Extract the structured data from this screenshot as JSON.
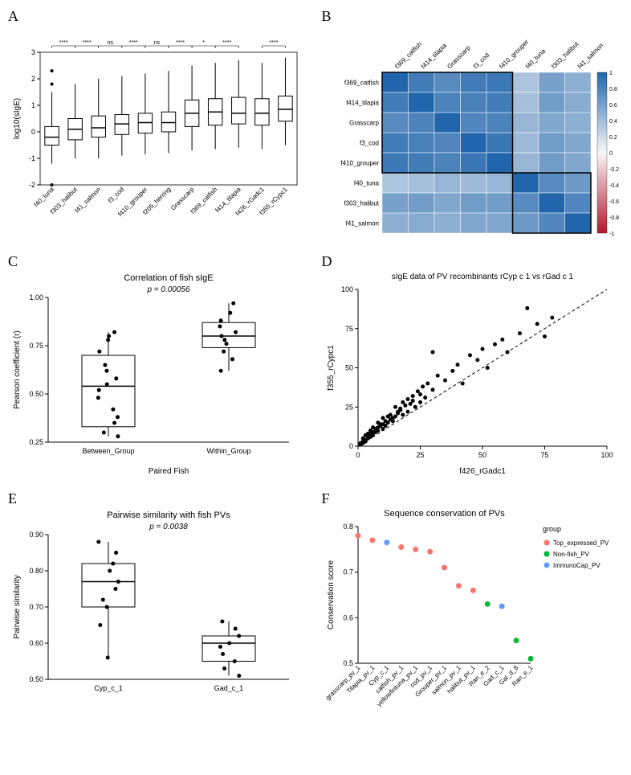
{
  "panelA": {
    "label": "A",
    "type": "boxplot",
    "ylabel": "log10(sIgE)",
    "ylim": [
      -2,
      3
    ],
    "yticks": [
      -2,
      -1,
      0,
      1,
      2,
      3
    ],
    "categories": [
      "f40_tuna",
      "f303_halibut",
      "f41_salmon",
      "f3_cod",
      "f410_grouper",
      "f205_herring",
      "Grasscarp",
      "f369_catfish",
      "f414_tilapia",
      "f426_rGadc1",
      "f355_rCypc1"
    ],
    "boxes": [
      {
        "q1": -0.5,
        "med": -0.2,
        "q3": 0.2,
        "low": -1.2,
        "high": 1.5,
        "outliers": [
          2.3,
          1.8,
          -2.0
        ]
      },
      {
        "q1": -0.3,
        "med": 0.1,
        "q3": 0.5,
        "low": -1.0,
        "high": 1.8,
        "outliers": []
      },
      {
        "q1": -0.2,
        "med": 0.15,
        "q3": 0.6,
        "low": -1.0,
        "high": 2.0,
        "outliers": []
      },
      {
        "q1": -0.1,
        "med": 0.3,
        "q3": 0.65,
        "low": -0.9,
        "high": 2.1,
        "outliers": []
      },
      {
        "q1": -0.05,
        "med": 0.35,
        "q3": 0.7,
        "low": -0.85,
        "high": 2.2,
        "outliers": []
      },
      {
        "q1": 0.0,
        "med": 0.35,
        "q3": 0.75,
        "low": -0.8,
        "high": 2.3,
        "outliers": []
      },
      {
        "q1": 0.2,
        "med": 0.7,
        "q3": 1.2,
        "low": -0.7,
        "high": 2.5,
        "outliers": []
      },
      {
        "q1": 0.25,
        "med": 0.75,
        "q3": 1.25,
        "low": -0.65,
        "high": 2.6,
        "outliers": []
      },
      {
        "q1": 0.3,
        "med": 0.7,
        "q3": 1.3,
        "low": -0.6,
        "high": 2.7,
        "outliers": []
      },
      {
        "q1": 0.25,
        "med": 0.7,
        "q3": 1.25,
        "low": -0.65,
        "high": 2.6,
        "outliers": []
      },
      {
        "q1": 0.4,
        "med": 0.85,
        "q3": 1.35,
        "low": -0.5,
        "high": 2.8,
        "outliers": []
      }
    ],
    "sig_annotations": [
      {
        "from": 0,
        "to": 1,
        "label": "****"
      },
      {
        "from": 1,
        "to": 2,
        "label": "****"
      },
      {
        "from": 2,
        "to": 3,
        "label": "ns"
      },
      {
        "from": 3,
        "to": 4,
        "label": "****"
      },
      {
        "from": 4,
        "to": 5,
        "label": "ns"
      },
      {
        "from": 5,
        "to": 6,
        "label": "****"
      },
      {
        "from": 6,
        "to": 7,
        "label": "*"
      },
      {
        "from": 7,
        "to": 8,
        "label": "****"
      },
      {
        "from": 9,
        "to": 10,
        "label": "****"
      }
    ],
    "box_fill": "#ffffff",
    "box_stroke": "#000000",
    "grid_color": "#ffffff",
    "background": "#ffffff"
  },
  "panelB": {
    "label": "B",
    "type": "heatmap",
    "row_labels": [
      "f369_catfish",
      "f414_tilapia",
      "Grasscarp",
      "f3_cod",
      "f410_grouper",
      "f40_tuna",
      "f303_halibut",
      "f41_salmon"
    ],
    "col_labels": [
      "f369_catfish",
      "f414_tilapia",
      "Grasscarp",
      "f3_cod",
      "f410_grouper",
      "f40_tuna",
      "f303_halibut",
      "f41_salmon"
    ],
    "values": [
      [
        1.0,
        0.85,
        0.75,
        0.85,
        0.87,
        0.35,
        0.6,
        0.5
      ],
      [
        0.85,
        1.0,
        0.8,
        0.82,
        0.85,
        0.38,
        0.62,
        0.52
      ],
      [
        0.75,
        0.8,
        1.0,
        0.78,
        0.8,
        0.45,
        0.55,
        0.5
      ],
      [
        0.85,
        0.82,
        0.78,
        1.0,
        0.88,
        0.42,
        0.63,
        0.55
      ],
      [
        0.87,
        0.85,
        0.8,
        0.88,
        1.0,
        0.45,
        0.62,
        0.55
      ],
      [
        0.35,
        0.38,
        0.45,
        0.42,
        0.45,
        1.0,
        0.75,
        0.65
      ],
      [
        0.6,
        0.62,
        0.55,
        0.63,
        0.62,
        0.75,
        1.0,
        0.78
      ],
      [
        0.5,
        0.52,
        0.5,
        0.55,
        0.55,
        0.65,
        0.78,
        1.0
      ]
    ],
    "colorbar_range": [
      -1,
      1
    ],
    "colorbar_ticks": [
      -1,
      -0.8,
      -0.6,
      -0.4,
      -0.2,
      0,
      0.2,
      0.4,
      0.6,
      0.8,
      1
    ],
    "color_low": "#b2182b",
    "color_mid": "#f7f7f7",
    "color_high": "#2166ac",
    "cluster_box_color": "#000000",
    "cluster1": [
      0,
      4
    ],
    "cluster2": [
      5,
      7
    ]
  },
  "panelC": {
    "label": "C",
    "type": "boxplot",
    "title": "Correlation of fish sIgE",
    "pval": "p = 0.00056",
    "ylabel": "Pearson coefficient (r)",
    "xlabel": "Paired Fish",
    "ylim": [
      0.25,
      1.0
    ],
    "yticks": [
      0.25,
      0.5,
      0.75,
      1.0
    ],
    "categories": [
      "Between_Group",
      "Within_Group"
    ],
    "boxes": [
      {
        "q1": 0.33,
        "med": 0.54,
        "q3": 0.7,
        "low": 0.28,
        "high": 0.82,
        "points": [
          0.82,
          0.8,
          0.78,
          0.72,
          0.65,
          0.62,
          0.58,
          0.55,
          0.52,
          0.48,
          0.42,
          0.38,
          0.35,
          0.3,
          0.28
        ]
      },
      {
        "q1": 0.74,
        "med": 0.8,
        "q3": 0.87,
        "low": 0.62,
        "high": 0.97,
        "points": [
          0.97,
          0.92,
          0.88,
          0.85,
          0.82,
          0.8,
          0.78,
          0.76,
          0.72,
          0.68,
          0.62
        ]
      }
    ],
    "box_fill": "#ffffff",
    "box_stroke": "#000000"
  },
  "panelD": {
    "label": "D",
    "type": "scatter",
    "title": "sIgE data of PV recombinants rCyp c 1 vs rGad c 1",
    "xlabel": "f426_rGadc1",
    "ylabel": "f355_rCypc1",
    "xlim": [
      0,
      100
    ],
    "ylim": [
      0,
      100
    ],
    "xticks": [
      0,
      25,
      50,
      75,
      100
    ],
    "yticks": [
      0,
      25,
      50,
      75,
      100
    ],
    "diagonal": true,
    "points": [
      [
        1,
        2
      ],
      [
        2,
        3
      ],
      [
        2,
        5
      ],
      [
        3,
        4
      ],
      [
        3,
        7
      ],
      [
        4,
        5
      ],
      [
        4,
        8
      ],
      [
        5,
        6
      ],
      [
        5,
        10
      ],
      [
        6,
        9
      ],
      [
        6,
        12
      ],
      [
        7,
        11
      ],
      [
        8,
        10
      ],
      [
        8,
        15
      ],
      [
        9,
        13
      ],
      [
        10,
        14
      ],
      [
        10,
        18
      ],
      [
        11,
        16
      ],
      [
        12,
        19
      ],
      [
        13,
        20
      ],
      [
        14,
        18
      ],
      [
        15,
        25
      ],
      [
        16,
        22
      ],
      [
        17,
        24
      ],
      [
        18,
        28
      ],
      [
        20,
        30
      ],
      [
        22,
        32
      ],
      [
        24,
        35
      ],
      [
        25,
        28
      ],
      [
        26,
        38
      ],
      [
        28,
        40
      ],
      [
        30,
        36
      ],
      [
        32,
        45
      ],
      [
        35,
        42
      ],
      [
        38,
        48
      ],
      [
        40,
        52
      ],
      [
        42,
        40
      ],
      [
        45,
        58
      ],
      [
        48,
        55
      ],
      [
        50,
        62
      ],
      [
        52,
        50
      ],
      [
        55,
        65
      ],
      [
        58,
        68
      ],
      [
        60,
        60
      ],
      [
        65,
        72
      ],
      [
        68,
        88
      ],
      [
        72,
        78
      ],
      [
        75,
        70
      ],
      [
        78,
        82
      ],
      [
        30,
        60
      ],
      [
        1,
        1
      ],
      [
        2,
        2
      ],
      [
        3,
        3
      ],
      [
        4,
        6
      ],
      [
        5,
        8
      ],
      [
        6,
        7
      ],
      [
        7,
        9
      ],
      [
        8,
        12
      ],
      [
        9,
        14
      ],
      [
        10,
        11
      ],
      [
        11,
        13
      ],
      [
        12,
        15
      ],
      [
        13,
        17
      ],
      [
        14,
        16
      ],
      [
        15,
        19
      ],
      [
        16,
        21
      ],
      [
        17,
        23
      ],
      [
        18,
        20
      ],
      [
        19,
        26
      ],
      [
        20,
        22
      ],
      [
        21,
        27
      ],
      [
        22,
        29
      ],
      [
        23,
        25
      ],
      [
        25,
        33
      ],
      [
        27,
        31
      ]
    ],
    "point_color": "#000000"
  },
  "panelE": {
    "label": "E",
    "type": "boxplot",
    "title": "Pairwise similarity with fish PVs",
    "pval": "p = 0.0038",
    "ylabel": "Pairwise similarity",
    "ylim": [
      0.5,
      0.9
    ],
    "yticks": [
      0.5,
      0.6,
      0.7,
      0.8,
      0.9
    ],
    "categories": [
      "Cyp_c_1",
      "Gad_c_1"
    ],
    "boxes": [
      {
        "q1": 0.7,
        "med": 0.77,
        "q3": 0.82,
        "low": 0.56,
        "high": 0.88,
        "points": [
          0.88,
          0.85,
          0.82,
          0.8,
          0.77,
          0.75,
          0.72,
          0.7,
          0.65,
          0.56
        ]
      },
      {
        "q1": 0.55,
        "med": 0.6,
        "q3": 0.62,
        "low": 0.51,
        "high": 0.66,
        "points": [
          0.66,
          0.64,
          0.62,
          0.6,
          0.59,
          0.57,
          0.55,
          0.53,
          0.51
        ]
      }
    ],
    "box_fill": "#ffffff",
    "box_stroke": "#000000"
  },
  "panelF": {
    "label": "F",
    "type": "scatter",
    "title": "Sequence conservation of PVs",
    "ylabel": "Conservation score",
    "ylim": [
      0.5,
      0.8
    ],
    "yticks": [
      0.5,
      0.6,
      0.7,
      0.8
    ],
    "categories": [
      "grasscarp_pv_1",
      "Tilapia_pv_1",
      "Cyp_c_1",
      "catfish_pv_1",
      "yellowfintuna_pv_1",
      "cod_pv_1",
      "Grouper_pv_1",
      "salmon_pv_1",
      "halibut_pv_1",
      "Ran_e_2",
      "Gad_c_1",
      "Gal_d_8",
      "Ran_e_1"
    ],
    "points": [
      {
        "x": 0,
        "y": 0.78,
        "g": "Top_expressed_PV"
      },
      {
        "x": 1,
        "y": 0.77,
        "g": "Top_expressed_PV"
      },
      {
        "x": 2,
        "y": 0.765,
        "g": "ImmunoCap_PV"
      },
      {
        "x": 3,
        "y": 0.755,
        "g": "Top_expressed_PV"
      },
      {
        "x": 4,
        "y": 0.75,
        "g": "Top_expressed_PV"
      },
      {
        "x": 5,
        "y": 0.745,
        "g": "Top_expressed_PV"
      },
      {
        "x": 6,
        "y": 0.71,
        "g": "Top_expressed_PV"
      },
      {
        "x": 7,
        "y": 0.67,
        "g": "Top_expressed_PV"
      },
      {
        "x": 8,
        "y": 0.66,
        "g": "Top_expressed_PV"
      },
      {
        "x": 9,
        "y": 0.63,
        "g": "Non-fish_PV"
      },
      {
        "x": 10,
        "y": 0.625,
        "g": "ImmunoCap_PV"
      },
      {
        "x": 11,
        "y": 0.55,
        "g": "Non-fish_PV"
      },
      {
        "x": 12,
        "y": 0.51,
        "g": "Non-fish_PV"
      }
    ],
    "groups": {
      "Top_expressed_PV": "#f8766d",
      "Non-fish_PV": "#00ba38",
      "ImmunoCap_PV": "#619cff"
    },
    "legend_title": "group"
  }
}
